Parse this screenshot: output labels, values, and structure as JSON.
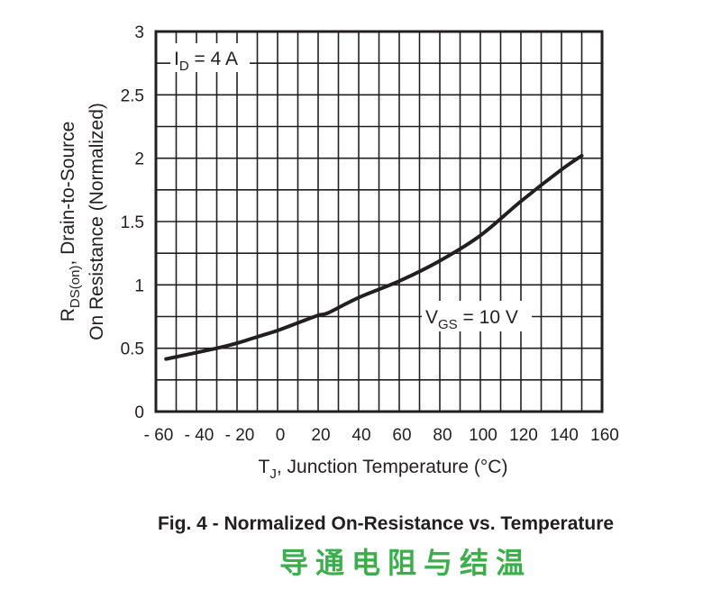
{
  "chart_data": {
    "type": "line",
    "title": "Fig. 4 - Normalized On-Resistance vs. Temperature",
    "subtitle": "导通电阻与结温",
    "xlabel": {
      "main": "T",
      "sub": "J",
      "rest": ", Junction Temperature (°C)"
    },
    "ylabel": {
      "line1_main": "R",
      "line1_sub": "DS(on)",
      "line1_rest": ", Drain-to-Source",
      "line2": "On Resistance (Normalized)"
    },
    "xlim": [
      -60,
      160
    ],
    "ylim": [
      0,
      3
    ],
    "x_ticks": [
      -60,
      -40,
      -20,
      0,
      20,
      40,
      60,
      80,
      100,
      120,
      140,
      160
    ],
    "x_tick_labels": [
      "- 60",
      "- 40",
      "- 20",
      "0",
      "20",
      "40",
      "60",
      "80",
      "100",
      "120",
      "140",
      "160"
    ],
    "y_ticks": [
      0,
      0.5,
      1,
      1.5,
      2,
      2.5,
      3
    ],
    "y_tick_labels": [
      "0",
      "0.5",
      "1",
      "1.5",
      "2",
      "2.5",
      "3"
    ],
    "grid": true,
    "grid_x_step": 10,
    "grid_y_step": 0.25,
    "annotations": [
      {
        "main": "I",
        "sub": "D",
        "rest": " = 4 A"
      },
      {
        "main": "V",
        "sub": "GS",
        "rest": " = 10 V"
      }
    ],
    "series": [
      {
        "x": [
          -55,
          -30,
          -20,
          -10,
          0,
          10,
          20,
          25,
          40,
          60,
          80,
          100,
          120,
          140,
          150
        ],
        "y": [
          0.415,
          0.5,
          0.54,
          0.59,
          0.64,
          0.7,
          0.76,
          0.78,
          0.9,
          1.03,
          1.19,
          1.39,
          1.66,
          1.91,
          2.02
        ],
        "color": "#231f20"
      }
    ]
  },
  "colors": {
    "subtitle": "#3cae4b",
    "ink": "#231f20"
  }
}
